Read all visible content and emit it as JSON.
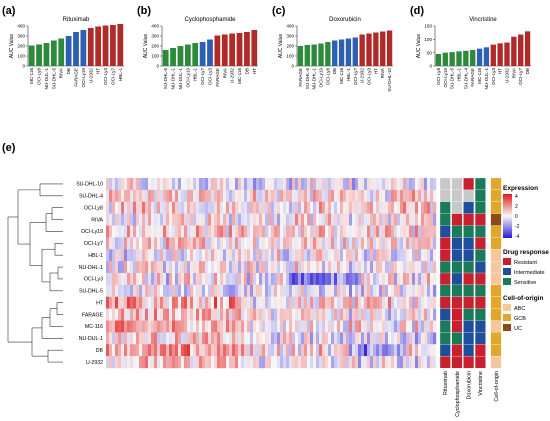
{
  "panel_labels": [
    "(a)",
    "(b)",
    "(c)",
    "(d)",
    "(e)"
  ],
  "colors": {
    "abc": "#2c8a3a",
    "gcb": "#2f5fb0",
    "other": "#b02a2a",
    "resistant": "#c8202e",
    "intermediate": "#1f4e9a",
    "sensitive": "#1a7a5a",
    "coo_abc": "#f5c79a",
    "coo_gcb": "#e0a72a",
    "coo_uc": "#8c4a17",
    "na": "#c8c8c8",
    "heat_high": "#e41a1c",
    "heat_mid": "#f7f7f7",
    "heat_low": "#2b1bd6"
  },
  "chart_data": [
    {
      "type": "bar",
      "title": "Rituximab",
      "ylabel": "AUC Value",
      "ylim": [
        0,
        400
      ],
      "yticks": [
        "0",
        "100",
        "200",
        "300",
        "400"
      ],
      "categories": [
        "MC-116",
        "OCI-Ly8",
        "NU-DUL-1",
        "SU-DHL-5",
        "RIVA",
        "DB",
        "FARAGE",
        "OCI-Ly19",
        "U-2932",
        "HT",
        "OCI-Ly3",
        "OCI-Ly7",
        "HBL-1"
      ],
      "values": [
        205,
        215,
        230,
        255,
        275,
        300,
        340,
        360,
        380,
        395,
        405,
        410,
        420
      ],
      "groups": [
        "abc",
        "abc",
        "abc",
        "abc",
        "abc",
        "gcb",
        "gcb",
        "gcb",
        "other",
        "other",
        "other",
        "other",
        "other"
      ]
    },
    {
      "type": "bar",
      "title": "Cyclophosphamide",
      "ylabel": "AUC Value",
      "ylim": [
        0,
        400
      ],
      "yticks": [
        "0",
        "100",
        "200",
        "300",
        "400"
      ],
      "categories": [
        "SU-DHL-5",
        "NU-DHL-1",
        "NU-DUL-1",
        "OCI-Ly19",
        "HBL-1",
        "OCI-Ly7",
        "OCI-Ly3",
        "FARAGE",
        "RIVA",
        "U-2932",
        "MC-116",
        "DB",
        "HT"
      ],
      "values": [
        160,
        180,
        200,
        215,
        230,
        240,
        265,
        305,
        315,
        325,
        330,
        340,
        360
      ],
      "groups": [
        "abc",
        "abc",
        "abc",
        "abc",
        "abc",
        "gcb",
        "gcb",
        "other",
        "other",
        "other",
        "other",
        "other",
        "other"
      ]
    },
    {
      "type": "bar",
      "title": "Doxorubicin",
      "ylabel": "AUC Value",
      "ylim": [
        0,
        400
      ],
      "yticks": [
        "0",
        "100",
        "200",
        "300",
        "400"
      ],
      "categories": [
        "FARAGE",
        "SU-DHL-5",
        "NU-DHL-1",
        "OCI-Ly19",
        "OCI-Ly8",
        "DB",
        "MC-116",
        "HBL-1",
        "OCI-Ly7",
        "U-2932",
        "OCI-Ly3",
        "HT",
        "RIVA",
        "SU-DHL-10"
      ],
      "values": [
        200,
        210,
        215,
        225,
        240,
        255,
        265,
        275,
        285,
        315,
        325,
        335,
        345,
        355
      ],
      "groups": [
        "abc",
        "abc",
        "abc",
        "abc",
        "abc",
        "gcb",
        "gcb",
        "gcb",
        "gcb",
        "other",
        "other",
        "other",
        "other",
        "other"
      ]
    },
    {
      "type": "bar",
      "title": "Vincristine",
      "ylabel": "AUC Value",
      "ylim": [
        0,
        150
      ],
      "yticks": [
        "0",
        "50",
        "100",
        "150"
      ],
      "categories": [
        "OCI-Ly8",
        "OCI-Ly19",
        "SU-DHL-5",
        "HBL-1",
        "SU-DHL-4",
        "FARAGE",
        "MC-116",
        "NU-DUL-1",
        "OCI-Ly3",
        "HT",
        "U-2932",
        "RIVA",
        "OCI-Ly7",
        "DB"
      ],
      "values": [
        45,
        50,
        52,
        55,
        57,
        60,
        65,
        70,
        80,
        85,
        88,
        110,
        118,
        130
      ],
      "groups": [
        "abc",
        "abc",
        "abc",
        "abc",
        "abc",
        "abc",
        "gcb",
        "gcb",
        "other",
        "other",
        "other",
        "other",
        "other",
        "other"
      ]
    },
    {
      "type": "heatmap",
      "rows": [
        "SU-DHL-10",
        "SU-DHL-4",
        "OCI-Ly8",
        "RIVA",
        "OCI-Ly19",
        "OCI-Ly7",
        "HBL-1",
        "NU-DHL-1",
        "OCI-Ly3",
        "SU-DHL-5",
        "HT",
        "FARAGE",
        "MC-116",
        "NU-DUL-1",
        "DB",
        "U-2932"
      ],
      "annotation_columns": [
        "Rituximab",
        "Cyclophosphamide",
        "Doxorubicin",
        "Vincristine",
        "Cell-of-origin"
      ],
      "annotations": [
        [
          "na",
          "na",
          "resistant",
          "sensitive",
          "gcb"
        ],
        [
          "na",
          "na",
          "na",
          "sensitive",
          "gcb"
        ],
        [
          "sensitive",
          "na",
          "intermediate",
          "sensitive",
          "gcb"
        ],
        [
          "sensitive",
          "resistant",
          "resistant",
          "resistant",
          "uc"
        ],
        [
          "intermediate",
          "sensitive",
          "sensitive",
          "sensitive",
          "gcb"
        ],
        [
          "resistant",
          "intermediate",
          "intermediate",
          "resistant",
          "gcb"
        ],
        [
          "resistant",
          "intermediate",
          "intermediate",
          "sensitive",
          "abc"
        ],
        [
          "sensitive",
          "sensitive",
          "sensitive",
          "intermediate",
          "abc"
        ],
        [
          "resistant",
          "intermediate",
          "resistant",
          "resistant",
          "abc"
        ],
        [
          "sensitive",
          "sensitive",
          "sensitive",
          "sensitive",
          "gcb"
        ],
        [
          "resistant",
          "resistant",
          "resistant",
          "resistant",
          "gcb"
        ],
        [
          "intermediate",
          "resistant",
          "sensitive",
          "sensitive",
          "gcb"
        ],
        [
          "sensitive",
          "resistant",
          "intermediate",
          "intermediate",
          "abc"
        ],
        [
          "sensitive",
          "sensitive",
          "intermediate",
          "intermediate",
          "gcb"
        ],
        [
          "intermediate",
          "resistant",
          "intermediate",
          "resistant",
          "gcb"
        ],
        [
          "resistant",
          "resistant",
          "resistant",
          "resistant",
          "abc"
        ]
      ],
      "expression_range": [
        -4,
        4
      ]
    }
  ],
  "legend": {
    "expression_title": "Expression",
    "expression_ticks": [
      "4",
      "2",
      "0",
      "-2",
      "-4"
    ],
    "drug_title": "Drug response",
    "drug_items": [
      "Resistant",
      "Intermediate",
      "Sensitive"
    ],
    "coo_title": "Cell-of-origin",
    "coo_items": [
      "ABC",
      "GCB",
      "UC"
    ]
  }
}
